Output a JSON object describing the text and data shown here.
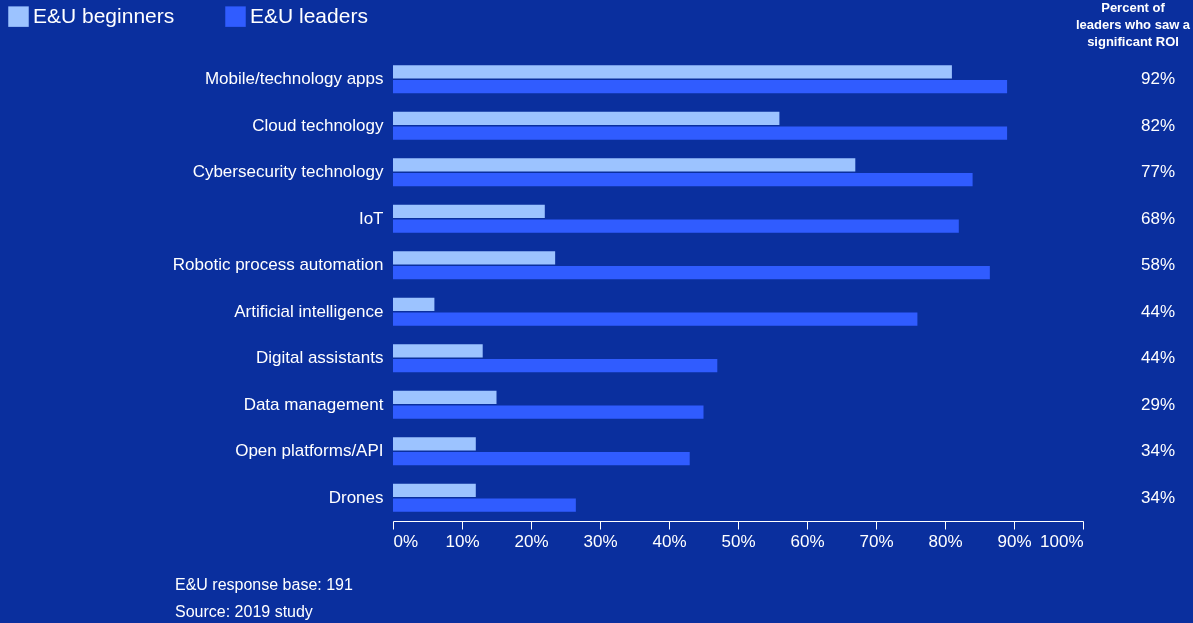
{
  "chart_data": {
    "type": "bar",
    "orientation": "horizontal",
    "categories": [
      "Mobile/technology apps",
      "Cloud technology",
      "Cybersecurity technology",
      "IoT",
      "Robotic process automation",
      "Artificial intelligence",
      "Digital assistants",
      "Data management",
      "Open platforms/API",
      "Drones"
    ],
    "series": [
      {
        "name": "E&U beginners",
        "color": "#9cc3ff",
        "values": [
          81,
          56,
          67,
          22,
          23.5,
          6,
          13,
          15,
          12,
          12
        ]
      },
      {
        "name": "E&U leaders",
        "color": "#305cff",
        "values": [
          89,
          89,
          84,
          82,
          86.5,
          76,
          47,
          45,
          43,
          26.5
        ]
      }
    ],
    "xlim": [
      0,
      100
    ],
    "xticks": [
      {
        "value": 0,
        "label": "0%"
      },
      {
        "value": 10,
        "label": "10%"
      },
      {
        "value": 20,
        "label": "20%"
      },
      {
        "value": 30,
        "label": "30%"
      },
      {
        "value": 40,
        "label": "40%"
      },
      {
        "value": 50,
        "label": "50%"
      },
      {
        "value": 60,
        "label": "60%"
      },
      {
        "value": 70,
        "label": "70%"
      },
      {
        "value": 80,
        "label": "80%"
      },
      {
        "value": 90,
        "label": "90%"
      },
      {
        "value": 100,
        "label": "100%"
      }
    ],
    "grid": false,
    "legend": "top left",
    "annotations": [
      "Percent of leaders who saw a significant ROI",
      "92%",
      "82%",
      "77%",
      "68%",
      "58%",
      "44%",
      "44%",
      "29%",
      "34%",
      "34%",
      "E&U response base: 191",
      "Source: 2019 study"
    ]
  }
}
